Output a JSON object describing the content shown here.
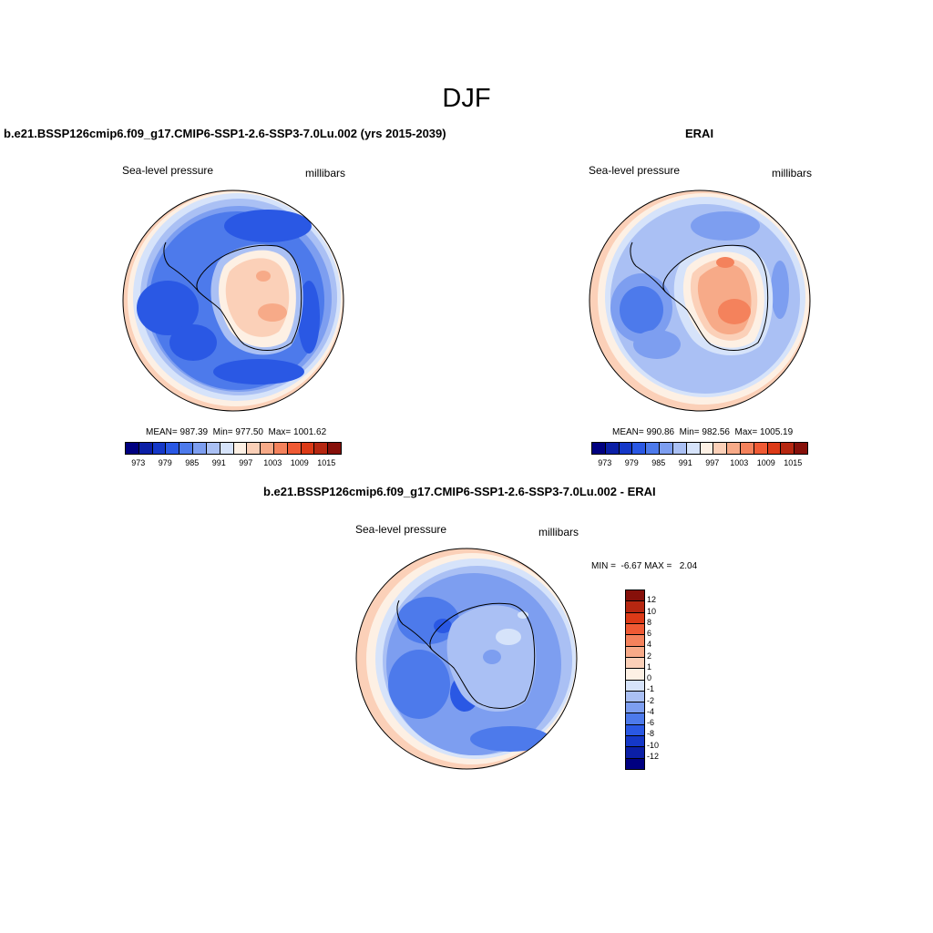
{
  "title": "DJF",
  "panels": {
    "model": {
      "title": "b.e21.BSSP126cmip6.f09_g17.CMIP6-SSP1-2.6-SSP3-7.0Lu.002 (yrs 2015-2039)",
      "variable": "Sea-level pressure",
      "units": "millibars",
      "stats": "MEAN= 987.39  Min= 977.50  Max= 1001.62"
    },
    "obs": {
      "title": "ERAI",
      "variable": "Sea-level pressure",
      "units": "millibars",
      "stats": "MEAN= 990.86  Min= 982.56  Max= 1005.19"
    },
    "diff": {
      "title": "b.e21.BSSP126cmip6.f09_g17.CMIP6-SSP1-2.6-SSP3-7.0Lu.002 - ERAI",
      "variable": "Sea-level pressure",
      "units": "millibars",
      "stats": "MIN =  -6.67 MAX =   2.04"
    }
  },
  "colorbar_abs": {
    "colors": [
      "#000080",
      "#0b1fa6",
      "#1538c8",
      "#2a58e4",
      "#4d7aeb",
      "#7d9ef0",
      "#aac0f4",
      "#d6e3fa",
      "#fdf0e4",
      "#fbd0b8",
      "#f7aa88",
      "#f4825c",
      "#ef5a34",
      "#dc3a17",
      "#b62711",
      "#86100a"
    ],
    "tick_labels": [
      "973",
      "979",
      "985",
      "991",
      "997",
      "1003",
      "1009",
      "1015"
    ]
  },
  "colorbar_diff": {
    "colors": [
      "#86100a",
      "#b62711",
      "#dc3a17",
      "#ef5a34",
      "#f4825c",
      "#f7aa88",
      "#fbd0b8",
      "#fdf0e4",
      "#d6e3fa",
      "#aac0f4",
      "#7d9ef0",
      "#4d7aeb",
      "#2a58e4",
      "#1538c8",
      "#0b1fa6",
      "#000080"
    ],
    "tick_labels": [
      "12",
      "10",
      "8",
      "6",
      "4",
      "2",
      "1",
      "0",
      "-1",
      "-2",
      "-4",
      "-6",
      "-8",
      "-10",
      "-12"
    ]
  },
  "chart_data": [
    {
      "type": "heatmap",
      "title": "b.e21.BSSP126cmip6.f09_g17.CMIP6-SSP1-2.6-SSP3-7.0Lu.002 (yrs 2015-2039)",
      "projection": "south polar stereographic",
      "variable": "Sea-level pressure",
      "units": "millibars",
      "mean": 987.39,
      "min": 977.5,
      "max": 1001.62,
      "colorbar_levels": [
        973,
        979,
        985,
        991,
        997,
        1003,
        1009,
        1015
      ]
    },
    {
      "type": "heatmap",
      "title": "ERAI",
      "projection": "south polar stereographic",
      "variable": "Sea-level pressure",
      "units": "millibars",
      "mean": 990.86,
      "min": 982.56,
      "max": 1005.19,
      "colorbar_levels": [
        973,
        979,
        985,
        991,
        997,
        1003,
        1009,
        1015
      ]
    },
    {
      "type": "heatmap",
      "title": "b.e21.BSSP126cmip6.f09_g17.CMIP6-SSP1-2.6-SSP3-7.0Lu.002 - ERAI",
      "projection": "south polar stereographic",
      "variable": "Sea-level pressure",
      "units": "millibars",
      "min": -6.67,
      "max": 2.04,
      "colorbar_levels": [
        12,
        10,
        8,
        6,
        4,
        2,
        1,
        0,
        -1,
        -2,
        -4,
        -6,
        -8,
        -10,
        -12
      ]
    }
  ]
}
